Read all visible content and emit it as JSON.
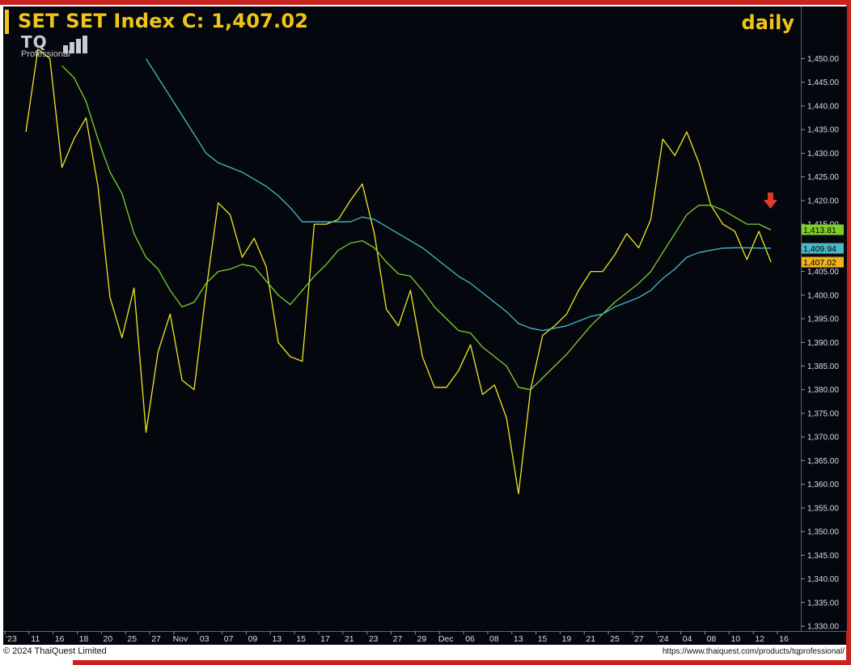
{
  "header": {
    "title": "SET  SET Index C: 1,407.02",
    "period": "daily",
    "logo_text": "TQ",
    "logo_subtext": "Professional"
  },
  "footer": {
    "copyright": "© 2024 ThaiQuest Limited",
    "url": "https://www.thaiquest.com/products/tqprofessional/"
  },
  "signal": {
    "icon": "red-down-arrow-icon",
    "color": "#e23a2a"
  },
  "colors": {
    "background": "#04080e",
    "close": "#f3e620",
    "ma_short": "#7ecf2a",
    "ma_long": "#49b8c9"
  },
  "chart_data": {
    "type": "line",
    "title": "SET  SET Index C: 1,407.02",
    "ylim": [
      1330,
      1450
    ],
    "y_ticks": [
      "1,330.00",
      "1,335.00",
      "1,340.00",
      "1,345.00",
      "1,350.00",
      "1,355.00",
      "1,360.00",
      "1,365.00",
      "1,370.00",
      "1,375.00",
      "1,380.00",
      "1,385.00",
      "1,390.00",
      "1,395.00",
      "1,400.00",
      "1,405.00",
      "1,410.00",
      "1,415.00",
      "1,420.00",
      "1,425.00",
      "1,430.00",
      "1,435.00",
      "1,440.00",
      "1,445.00",
      "1,450.00"
    ],
    "x_ticks": [
      "'23",
      "11",
      "16",
      "18",
      "20",
      "25",
      "27",
      "Nov",
      "03",
      "07",
      "09",
      "13",
      "15",
      "17",
      "21",
      "23",
      "27",
      "29",
      "Dec",
      "06",
      "08",
      "13",
      "15",
      "19",
      "21",
      "25",
      "27",
      "'24",
      "04",
      "08",
      "10",
      "12",
      "16"
    ],
    "last_values": [
      {
        "label": "1,413.81",
        "value": 1413.81,
        "color": "#7ecf2a"
      },
      {
        "label": "1,409.94",
        "value": 1409.94,
        "color": "#49b8c9"
      },
      {
        "label": "1,407.02",
        "value": 1407.02,
        "color": "#f3b21f"
      }
    ],
    "series": [
      {
        "color": "#f3e620",
        "values": [
          1434.5,
          1452,
          1450,
          1427,
          1433,
          1437.5,
          1423,
          1399.5,
          1391,
          1401.5,
          1371,
          1388,
          1396,
          1382,
          1380,
          1401,
          1419.5,
          1417,
          1408,
          1412,
          1406,
          1390,
          1387,
          1386,
          1415,
          1415,
          1416,
          1420,
          1423.5,
          1413,
          1397,
          1393.5,
          1401,
          1387,
          1380.5,
          1380.5,
          1384,
          1389.5,
          1379,
          1381,
          1374,
          1358,
          1380,
          1391.5,
          1393.5,
          1396,
          1401,
          1405,
          1405,
          1408.5,
          1413,
          1410,
          1416,
          1433,
          1429.5,
          1434.5,
          1428,
          1419,
          1415,
          1413.5,
          1407.5,
          1413.5,
          1407.02
        ]
      },
      {
        "color": "#7ecf2a",
        "values": [
          null,
          null,
          null,
          1448.5,
          1446,
          1441,
          1433,
          1426,
          1421.5,
          1413,
          1408,
          1405.5,
          1401,
          1397.5,
          1398.5,
          1402.5,
          1405,
          1405.5,
          1406.5,
          1406,
          1403,
          1400,
          1398,
          1401,
          1404,
          1406.5,
          1409.5,
          1411,
          1411.5,
          1410,
          1407,
          1404.5,
          1404,
          1401,
          1397.5,
          1395,
          1392.5,
          1392,
          1389,
          1387,
          1385,
          1380.5,
          1380,
          1382.5,
          1385,
          1387.5,
          1390.5,
          1393.5,
          1396,
          1398.5,
          1400.5,
          1402.5,
          1405,
          1409,
          1413,
          1417,
          1419,
          1419,
          1418,
          1416.5,
          1415,
          1415,
          1413.81
        ]
      },
      {
        "color": "#49b8c9",
        "values": [
          null,
          null,
          null,
          null,
          null,
          null,
          null,
          null,
          null,
          null,
          1450,
          1446,
          1442,
          1438,
          1434,
          1430,
          1428,
          1427,
          1426,
          1424.5,
          1423,
          1421,
          1418.5,
          1415.5,
          1415.5,
          1415.5,
          1415.5,
          1415.5,
          1416.5,
          1416,
          1414.5,
          1413,
          1411.5,
          1410,
          1408,
          1406,
          1404,
          1402.5,
          1400.5,
          1398.5,
          1396.5,
          1394,
          1393,
          1392.5,
          1393,
          1393.5,
          1394.5,
          1395.5,
          1396,
          1397.5,
          1398.5,
          1399.5,
          1401,
          1403.5,
          1405.5,
          1408,
          1409,
          1409.5,
          1409.94,
          1410,
          1410,
          1409.94,
          1409.94
        ]
      }
    ]
  }
}
